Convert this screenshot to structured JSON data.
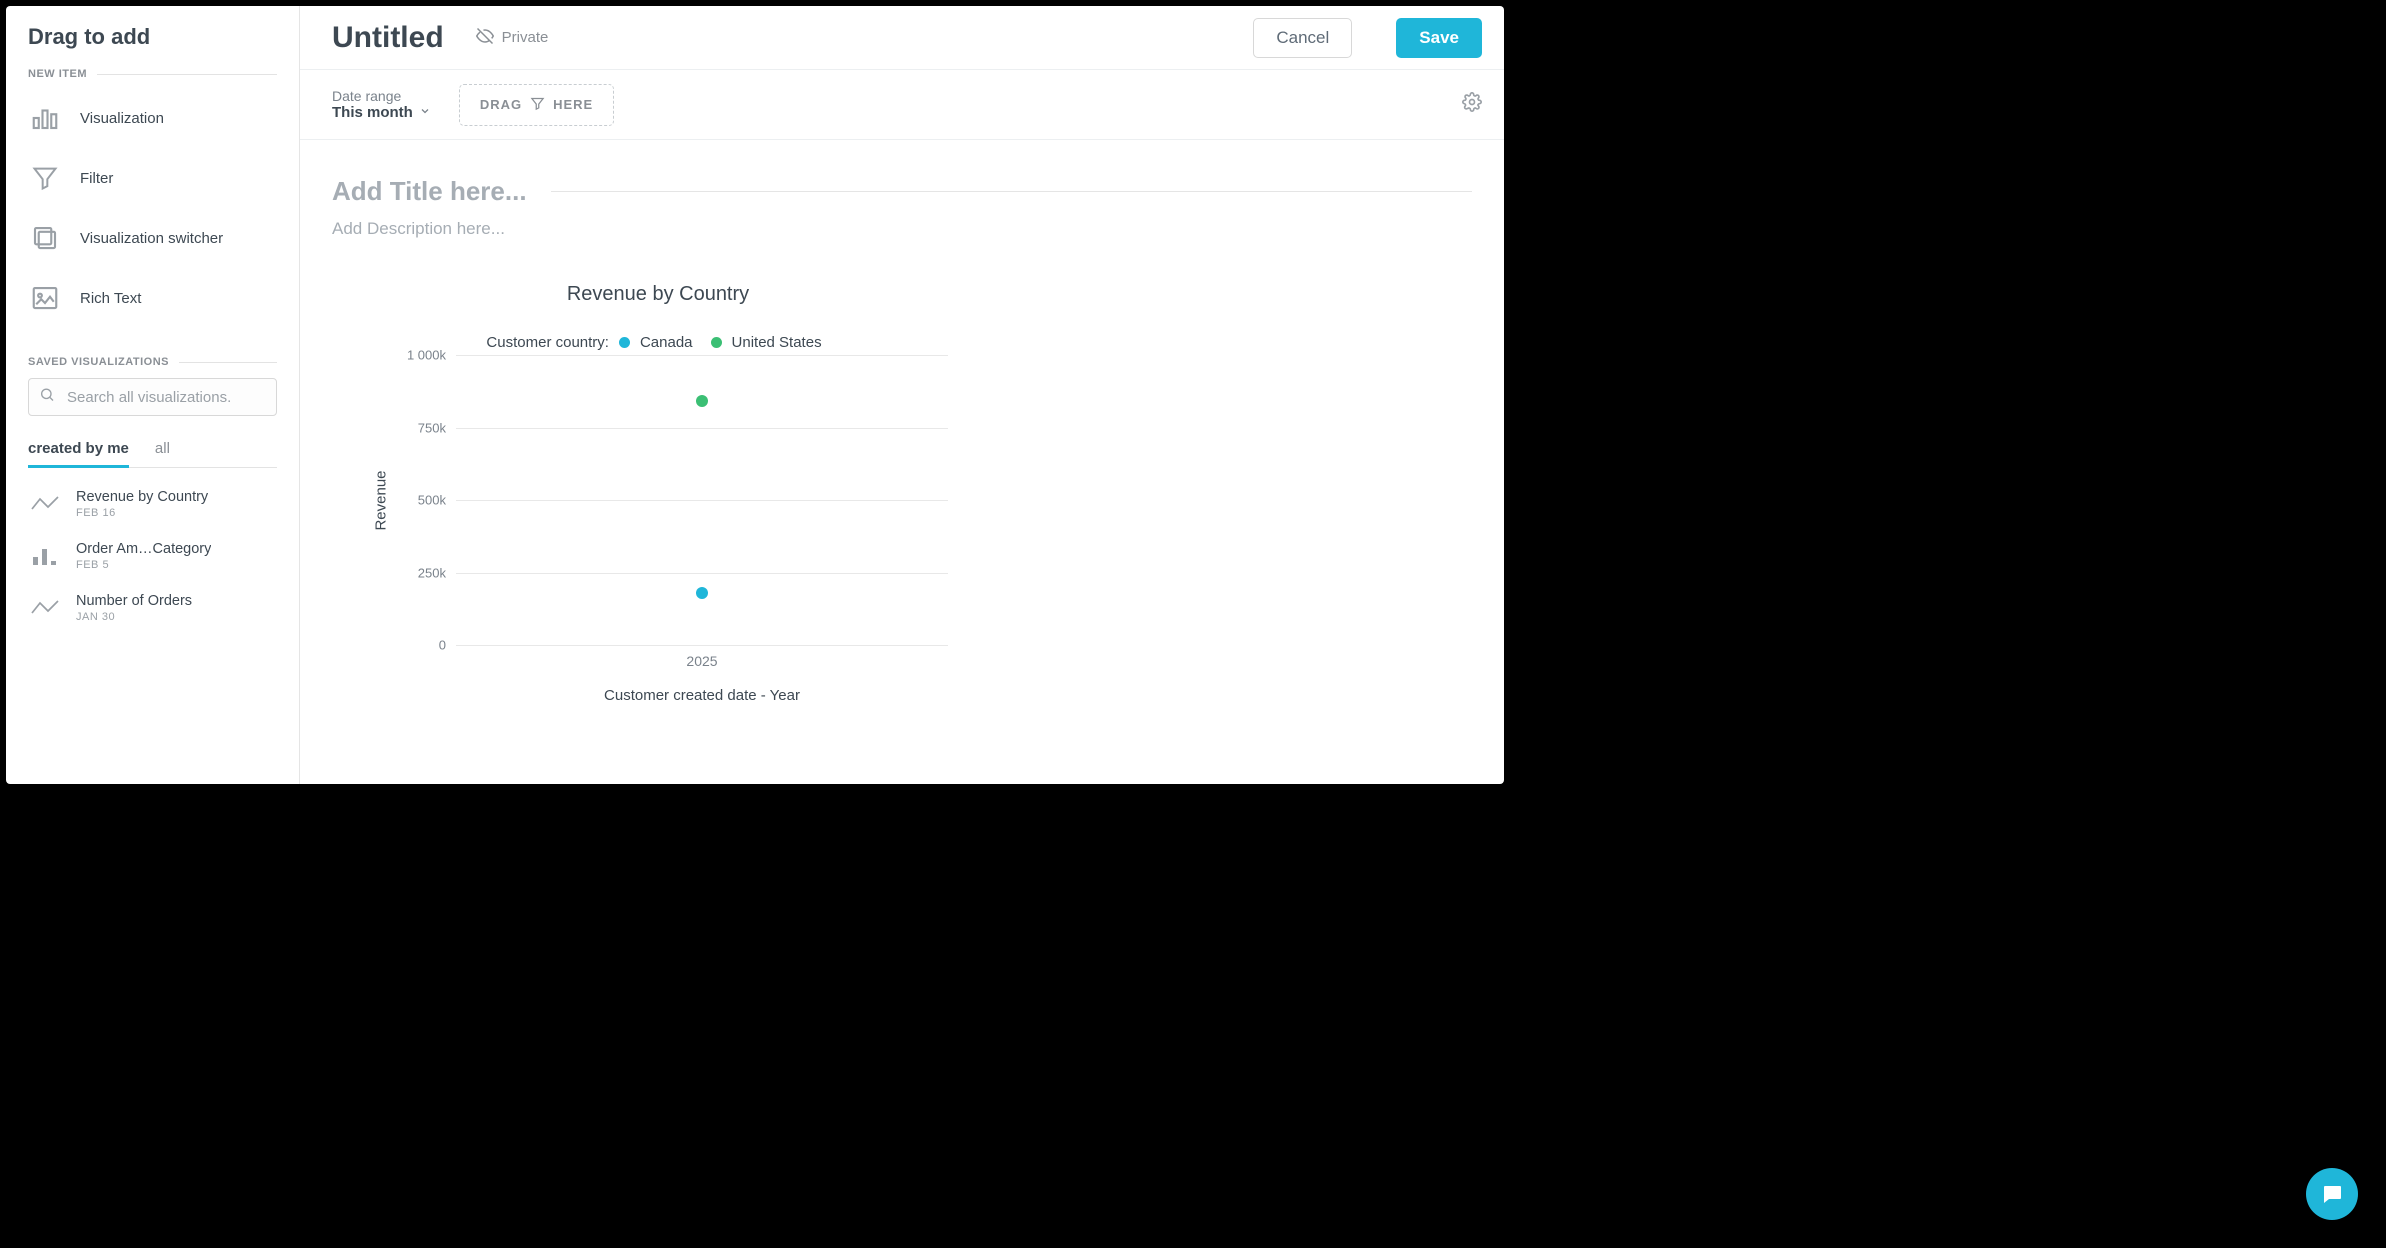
{
  "sidebar": {
    "title": "Drag to add",
    "new_item_label": "NEW ITEM",
    "items": [
      {
        "label": "Visualization",
        "icon": "bars"
      },
      {
        "label": "Filter",
        "icon": "funnel"
      },
      {
        "label": "Visualization switcher",
        "icon": "stack"
      },
      {
        "label": "Rich Text",
        "icon": "richtext"
      }
    ],
    "saved_label": "SAVED VISUALIZATIONS",
    "search_placeholder": "Search all visualizations.",
    "tabs": [
      {
        "label": "created by me",
        "active": true
      },
      {
        "label": "all",
        "active": false
      }
    ],
    "saved": [
      {
        "name": "Revenue by Country",
        "date": "FEB 16",
        "icon": "line"
      },
      {
        "name": "Order Am…Category",
        "date": "FEB 5",
        "icon": "bars-small"
      },
      {
        "name": "Number of Orders",
        "date": "JAN 30",
        "icon": "line"
      }
    ]
  },
  "topbar": {
    "doc_title": "Untitled",
    "privacy_label": "Private",
    "cancel_label": "Cancel",
    "save_label": "Save"
  },
  "filterbar": {
    "date_range_label": "Date range",
    "date_range_value": "This month",
    "drop_left": "DRAG",
    "drop_right": "HERE"
  },
  "canvas": {
    "title_placeholder": "Add Title here...",
    "desc_placeholder": "Add Description here..."
  },
  "chart": {
    "type": "scatter",
    "title": "Revenue by Country",
    "legend_label": "Customer country:",
    "series": [
      {
        "name": "Canada",
        "color": "#1fb6d9"
      },
      {
        "name": "United States",
        "color": "#3bbf74"
      }
    ],
    "ylabel": "Revenue",
    "xlabel": "Customer created date - Year",
    "ylim": [
      0,
      1000
    ],
    "yticks": [
      {
        "v": 1000,
        "label": "1 000k"
      },
      {
        "v": 750,
        "label": "750k"
      },
      {
        "v": 500,
        "label": "500k"
      },
      {
        "v": 250,
        "label": "250k"
      },
      {
        "v": 0,
        "label": "0"
      }
    ],
    "xticks": [
      "2025"
    ],
    "points": [
      {
        "series": 1,
        "x": "2025",
        "y": 840
      },
      {
        "series": 0,
        "x": "2025",
        "y": 180
      }
    ],
    "grid_color": "#e8e8e8",
    "background_color": "#ffffff",
    "marker_radius": 6,
    "title_fontsize": 20,
    "label_fontsize": 15,
    "tick_fontsize": 13
  },
  "colors": {
    "accent": "#1fb6d9",
    "text_primary": "#3d4852",
    "text_muted": "#8a8f95",
    "border": "#e5e5e5"
  }
}
